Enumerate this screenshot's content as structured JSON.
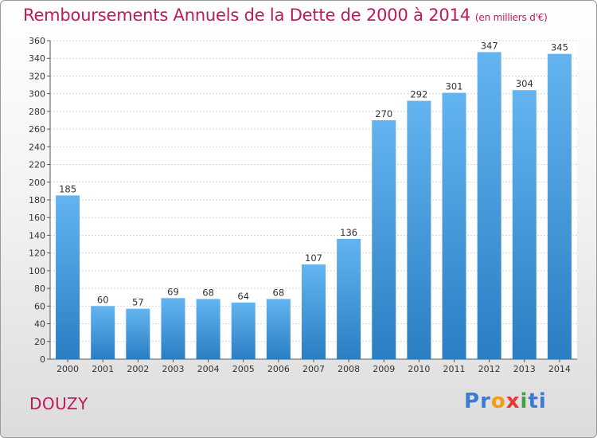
{
  "title": "Remboursements Annuels de la Dette de 2000 à 2014",
  "subtitle": "(en milliers d'€)",
  "commune": "DOUZY",
  "logo": {
    "text": "Proxiti",
    "colors": [
      "#3a7bd5",
      "#3a7bd5",
      "#f39c12",
      "#e53935",
      "#43a047",
      "#3a7bd5",
      "#3a7bd5"
    ]
  },
  "colors": {
    "bar_top": "#63b4f0",
    "bar_bottom": "#2a7ec2",
    "title": "#c2185b",
    "grid": "#d6d6d6"
  },
  "chart_data": {
    "type": "bar",
    "title": "Remboursements Annuels de la Dette de 2000 à 2014",
    "ylabel": "en milliers d'€",
    "xlabel": "",
    "ylim": [
      0,
      360
    ],
    "ytick_step": 20,
    "grid": true,
    "categories": [
      "2000",
      "2001",
      "2002",
      "2003",
      "2004",
      "2005",
      "2006",
      "2007",
      "2008",
      "2009",
      "2010",
      "2011",
      "2012",
      "2013",
      "2014"
    ],
    "values": [
      185,
      60,
      57,
      69,
      68,
      64,
      68,
      107,
      136,
      270,
      292,
      301,
      347,
      304,
      345
    ]
  }
}
